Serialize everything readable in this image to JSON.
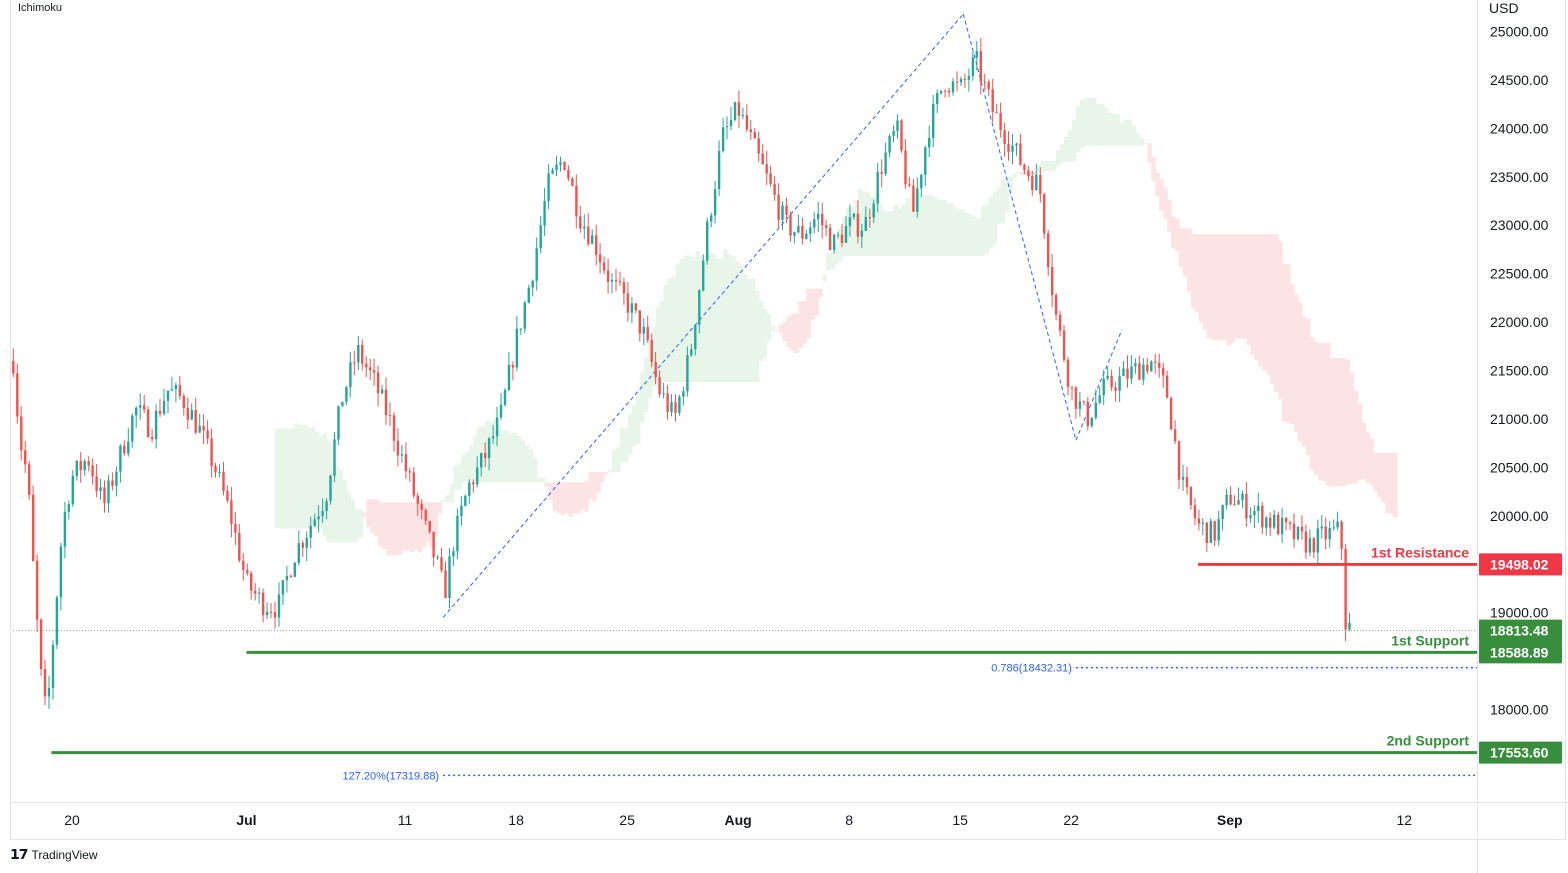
{
  "indicator": "Ichimoku",
  "branding": "TradingView",
  "chart_data": {
    "type": "candlestick",
    "currency": "USD",
    "y_range": [
      16700,
      25300
    ],
    "y_ticks": [
      "25000.00",
      "24500.00",
      "24000.00",
      "23500.00",
      "23000.00",
      "22500.00",
      "22000.00",
      "21500.00",
      "21000.00",
      "20500.00",
      "20000.00",
      "19000.00",
      "18000.00"
    ],
    "x_ticks": [
      {
        "label": "20",
        "day": 0
      },
      {
        "label": "Jul",
        "day": 11
      },
      {
        "label": "11",
        "day": 21
      },
      {
        "label": "18",
        "day": 28
      },
      {
        "label": "25",
        "day": 35
      },
      {
        "label": "Aug",
        "day": 42
      },
      {
        "label": "8",
        "day": 49
      },
      {
        "label": "15",
        "day": 56
      },
      {
        "label": "22",
        "day": 63
      },
      {
        "label": "Sep",
        "day": 73
      },
      {
        "label": "12",
        "day": 84
      }
    ],
    "price_path": [
      [
        -3.7,
        21600
      ],
      [
        -3.3,
        20800
      ],
      [
        -2.8,
        20400
      ],
      [
        -2.5,
        19600
      ],
      [
        -2.0,
        18400
      ],
      [
        -1.6,
        17900
      ],
      [
        -1.2,
        18700
      ],
      [
        -0.6,
        19900
      ],
      [
        0.0,
        20400
      ],
      [
        1.0,
        20600
      ],
      [
        2.0,
        20100
      ],
      [
        3.0,
        20600
      ],
      [
        4.0,
        21100
      ],
      [
        5.0,
        20900
      ],
      [
        6.0,
        21300
      ],
      [
        7.0,
        21200
      ],
      [
        8.0,
        20900
      ],
      [
        9.0,
        20500
      ],
      [
        10.0,
        20000
      ],
      [
        11.0,
        19300
      ],
      [
        12.0,
        19100
      ],
      [
        13.0,
        19050
      ],
      [
        14.0,
        19600
      ],
      [
        15.0,
        19900
      ],
      [
        16.0,
        20200
      ],
      [
        17.0,
        21200
      ],
      [
        18.0,
        21700
      ],
      [
        19.0,
        21400
      ],
      [
        20.0,
        21000
      ],
      [
        21.0,
        20500
      ],
      [
        22.0,
        20000
      ],
      [
        23.0,
        19500
      ],
      [
        23.5,
        19200
      ],
      [
        24.0,
        19700
      ],
      [
        25.0,
        20300
      ],
      [
        26.0,
        20600
      ],
      [
        27.0,
        21000
      ],
      [
        28.0,
        21800
      ],
      [
        29.0,
        22500
      ],
      [
        30.0,
        23400
      ],
      [
        31.0,
        23700
      ],
      [
        32.0,
        23100
      ],
      [
        33.0,
        22800
      ],
      [
        34.0,
        22400
      ],
      [
        35.0,
        22200
      ],
      [
        36.0,
        21900
      ],
      [
        37.0,
        21300
      ],
      [
        38.0,
        21000
      ],
      [
        39.0,
        21700
      ],
      [
        40.0,
        22900
      ],
      [
        41.0,
        23900
      ],
      [
        42.0,
        24200
      ],
      [
        43.0,
        23800
      ],
      [
        44.0,
        23400
      ],
      [
        45.0,
        23000
      ],
      [
        46.0,
        22900
      ],
      [
        47.0,
        23100
      ],
      [
        48.0,
        22800
      ],
      [
        49.0,
        23000
      ],
      [
        50.0,
        23000
      ],
      [
        51.0,
        23600
      ],
      [
        52.0,
        24000
      ],
      [
        53.0,
        23100
      ],
      [
        54.0,
        24000
      ],
      [
        55.0,
        24500
      ],
      [
        56.0,
        24400
      ],
      [
        57.0,
        24700
      ],
      [
        58.0,
        24200
      ],
      [
        59.0,
        23900
      ],
      [
        60.0,
        23600
      ],
      [
        61.0,
        23400
      ],
      [
        62.0,
        22100
      ],
      [
        63.0,
        21300
      ],
      [
        64.0,
        21000
      ],
      [
        65.0,
        21300
      ],
      [
        66.0,
        21400
      ],
      [
        67.0,
        21500
      ],
      [
        68.0,
        21600
      ],
      [
        69.0,
        21300
      ],
      [
        70.0,
        20300
      ],
      [
        71.0,
        19900
      ],
      [
        72.0,
        19800
      ],
      [
        73.0,
        20200
      ],
      [
        74.0,
        20100
      ],
      [
        75.0,
        20000
      ],
      [
        76.0,
        19900
      ],
      [
        77.0,
        19800
      ],
      [
        78.0,
        19700
      ],
      [
        79.0,
        19800
      ],
      [
        80.0,
        19850
      ],
      [
        80.3,
        18900
      ],
      [
        80.6,
        18830
      ]
    ],
    "levels": [
      {
        "name": "1st Resistance",
        "value": 19498.02,
        "tag": "19498.02",
        "color": "#f23645",
        "from_day": 71
      },
      {
        "name": "1st Support",
        "value": 18588.89,
        "tag": "18588.89",
        "color": "#388e3c",
        "from_day": 11
      },
      {
        "name": "2nd Support",
        "value": 17553.6,
        "tag": "17553.60",
        "color": "#388e3c",
        "from_day": -1.3
      }
    ],
    "current_price": {
      "value": 18813.48,
      "tag": "18813.48",
      "color": "#388e3c"
    },
    "fib_levels": [
      {
        "label": "0.786(18432.31)",
        "value": 18432.31,
        "from_day": 63.3
      },
      {
        "label": "127.20%(17319.88)",
        "value": 17319.88,
        "from_day": 23.4
      }
    ],
    "colors": {
      "up": "#26a69a",
      "down": "#ef5350",
      "cloud_bull": "#e8f5e9",
      "cloud_bear": "#fde4e4",
      "fib": "#2962ff"
    }
  }
}
